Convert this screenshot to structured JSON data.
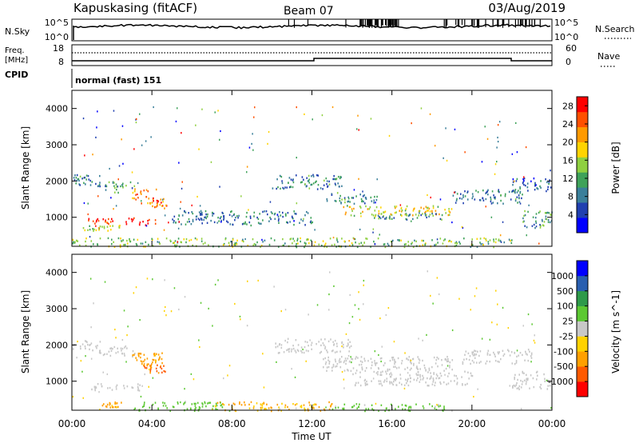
{
  "header": {
    "title": "Kapuskasing (fitACF)",
    "beam": "Beam 07",
    "date": "03/Aug/2019"
  },
  "strip_labels": {
    "nsky": "N.Sky",
    "freq_a": "Freq.",
    "freq_b": "[MHz]",
    "cpid": "CPID",
    "nsearch": "N.Search",
    "nave": "Nave",
    "cpid_value": "normal (fast) 151"
  },
  "nsky_ticks": [
    "10^5",
    "10^0"
  ],
  "nsearch_ticks": [
    "10^5",
    "10^0"
  ],
  "freq_ticks": [
    "18",
    "8"
  ],
  "nave_ticks": [
    "60",
    "0"
  ],
  "x_ticks": [
    "00:00",
    "04:00",
    "08:00",
    "12:00",
    "16:00",
    "20:00",
    "00:00"
  ],
  "xlabel": "Time UT",
  "colors": {
    "power": [
      "#0000ff",
      "#2040b0",
      "#3a7f9a",
      "#3fa25a",
      "#8fd040",
      "#ffd400",
      "#ff9a00",
      "#ff5000",
      "#ff0000"
    ],
    "velocity": [
      "#ff0000",
      "#ff5a00",
      "#ffa000",
      "#ffd200",
      "#c8c8c8",
      "#5cc832",
      "#2e9a4a",
      "#2a5fb0",
      "#0000ff"
    ]
  },
  "chart_data": [
    {
      "type": "heatmap",
      "panel": "power",
      "ylabel": "Slant Range [km]",
      "y_ticks": [
        1000,
        2000,
        3000,
        4000
      ],
      "ylim": [
        200,
        4500
      ],
      "xlim": [
        0,
        24
      ],
      "colorbar_label": "Power [dB]",
      "colorbar_ticks": [
        4,
        8,
        12,
        16,
        20,
        24,
        28
      ],
      "clim": [
        0,
        30
      ],
      "regions": [
        {
          "t": [
            0.0,
            1.4
          ],
          "r": [
            1900,
            2200
          ],
          "v": 9
        },
        {
          "t": [
            1.2,
            3.2
          ],
          "r": [
            1700,
            2000
          ],
          "v": 10
        },
        {
          "t": [
            3.0,
            4.3
          ],
          "r": [
            1400,
            1800
          ],
          "v": 22
        },
        {
          "t": [
            3.8,
            4.8
          ],
          "r": [
            1250,
            1550
          ],
          "v": 24
        },
        {
          "t": [
            0.8,
            4.2
          ],
          "r": [
            800,
            1000
          ],
          "v": 28
        },
        {
          "t": [
            0.5,
            2.5
          ],
          "r": [
            650,
            800
          ],
          "v": 16
        },
        {
          "t": [
            0.0,
            22.0
          ],
          "r": [
            200,
            450
          ],
          "v": 14
        },
        {
          "t": [
            10.0,
            13.5
          ],
          "r": [
            1800,
            2200
          ],
          "v": 9
        },
        {
          "t": [
            12.5,
            15.5
          ],
          "r": [
            1400,
            1700
          ],
          "v": 10
        },
        {
          "t": [
            13.5,
            19.0
          ],
          "r": [
            1050,
            1350
          ],
          "v": 18
        },
        {
          "t": [
            15.0,
            18.5
          ],
          "r": [
            950,
            1150
          ],
          "v": 10
        },
        {
          "t": [
            19.0,
            22.5
          ],
          "r": [
            1400,
            1800
          ],
          "v": 9
        },
        {
          "t": [
            22.0,
            24.0
          ],
          "r": [
            1700,
            2100
          ],
          "v": 7
        },
        {
          "t": [
            22.5,
            24.0
          ],
          "r": [
            700,
            1200
          ],
          "v": 11
        },
        {
          "t": [
            5.0,
            12.0
          ],
          "r": [
            800,
            1200
          ],
          "v": 8
        }
      ]
    },
    {
      "type": "heatmap",
      "panel": "velocity",
      "ylabel": "Slant Range [km]",
      "y_ticks": [
        1000,
        2000,
        3000,
        4000
      ],
      "ylim": [
        200,
        4500
      ],
      "xlim": [
        0,
        24
      ],
      "colorbar_label": "Velocity [m s^-1]",
      "colorbar_ticks": [
        "1000",
        "500",
        "100",
        "25",
        "-25",
        "-100",
        "-500",
        "-1000"
      ],
      "clim": [
        -1000,
        1000
      ],
      "regions": [
        {
          "t": [
            0.0,
            1.5
          ],
          "r": [
            1850,
            2200
          ],
          "v": 0
        },
        {
          "t": [
            1.2,
            3.2
          ],
          "r": [
            1700,
            2000
          ],
          "v": 0
        },
        {
          "t": [
            3.0,
            4.5
          ],
          "r": [
            1400,
            1800
          ],
          "v": -300
        },
        {
          "t": [
            3.5,
            4.8
          ],
          "r": [
            1250,
            1500
          ],
          "v": -600
        },
        {
          "t": [
            0.8,
            3.5
          ],
          "r": [
            750,
            950
          ],
          "v": 0
        },
        {
          "t": [
            1.5,
            2.5
          ],
          "r": [
            300,
            450
          ],
          "v": -150
        },
        {
          "t": [
            3.0,
            8.0
          ],
          "r": [
            200,
            450
          ],
          "v": 60
        },
        {
          "t": [
            7.0,
            13.0
          ],
          "r": [
            200,
            450
          ],
          "v": -120
        },
        {
          "t": [
            13.0,
            19.0
          ],
          "r": [
            200,
            400
          ],
          "v": 40
        },
        {
          "t": [
            10.0,
            14.0
          ],
          "r": [
            1800,
            2200
          ],
          "v": 0
        },
        {
          "t": [
            12.5,
            19.0
          ],
          "r": [
            1300,
            1700
          ],
          "v": 0
        },
        {
          "t": [
            14.0,
            20.0
          ],
          "r": [
            900,
            1300
          ],
          "v": 0
        },
        {
          "t": [
            19.5,
            23.0
          ],
          "r": [
            1500,
            1900
          ],
          "v": 0
        },
        {
          "t": [
            22.0,
            24.0
          ],
          "r": [
            800,
            1300
          ],
          "v": 0
        }
      ]
    }
  ]
}
